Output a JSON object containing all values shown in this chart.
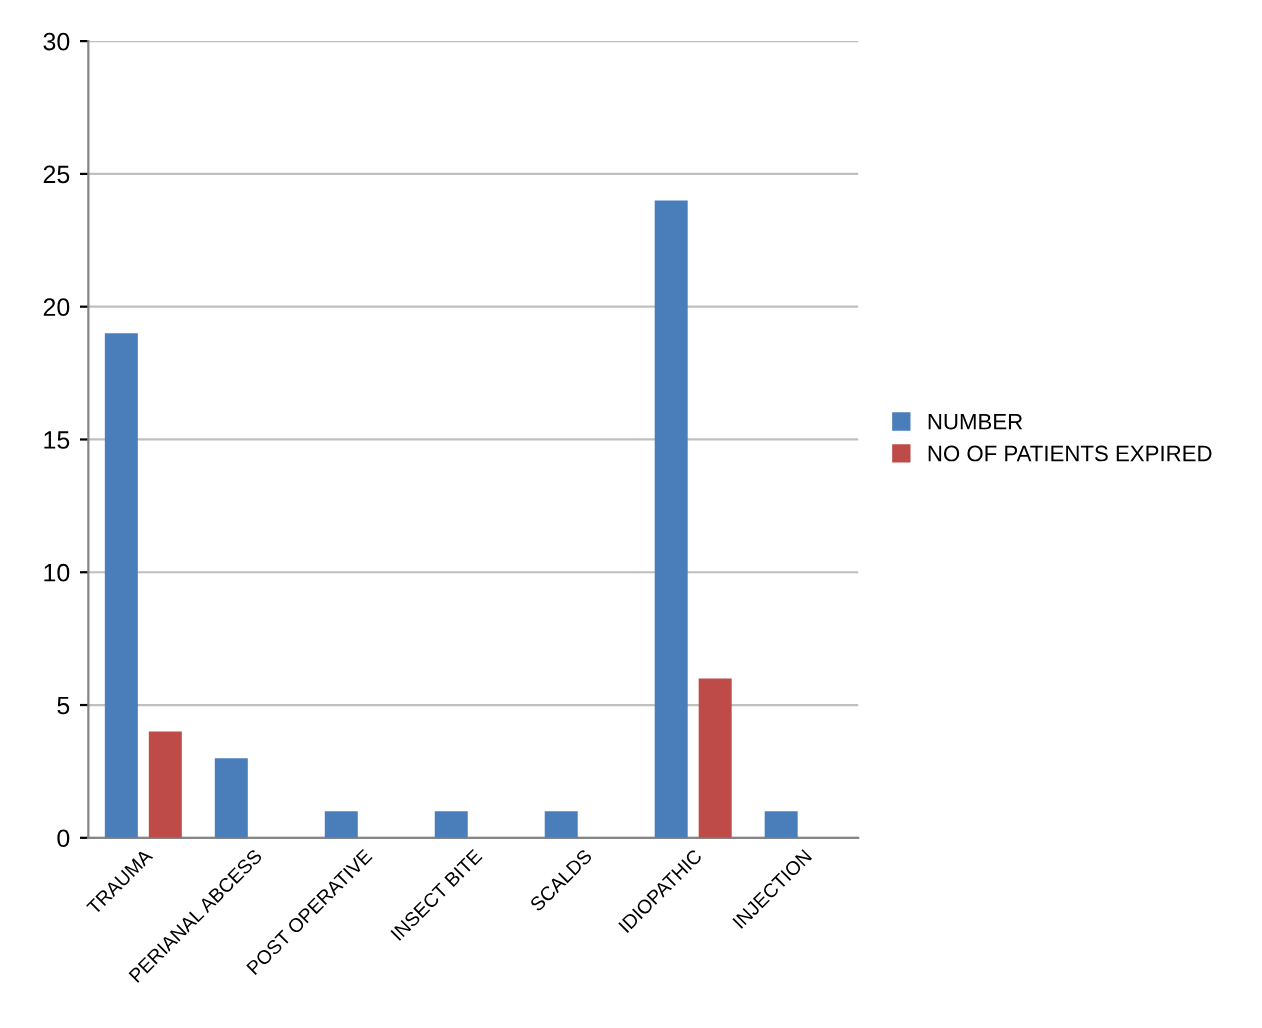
{
  "chart_data": {
    "type": "bar",
    "categories": [
      "TRAUMA",
      "PERIANAL ABCESS",
      "POST OPERATIVE",
      "INSECT BITE",
      "SCALDS",
      "IDIOPATHIC",
      "INJECTION"
    ],
    "series": [
      {
        "name": "NUMBER",
        "color": "#4a7ebb",
        "values": [
          19,
          3,
          1,
          1,
          1,
          24,
          1
        ]
      },
      {
        "name": "NO OF PATIENTS EXPIRED",
        "color": "#be4b48",
        "values": [
          4,
          0,
          0,
          0,
          0,
          6,
          0
        ]
      }
    ],
    "ylim": [
      0,
      30
    ],
    "yticks": [
      0,
      5,
      10,
      15,
      20,
      25,
      30
    ],
    "grid": "y",
    "legend": "right"
  }
}
